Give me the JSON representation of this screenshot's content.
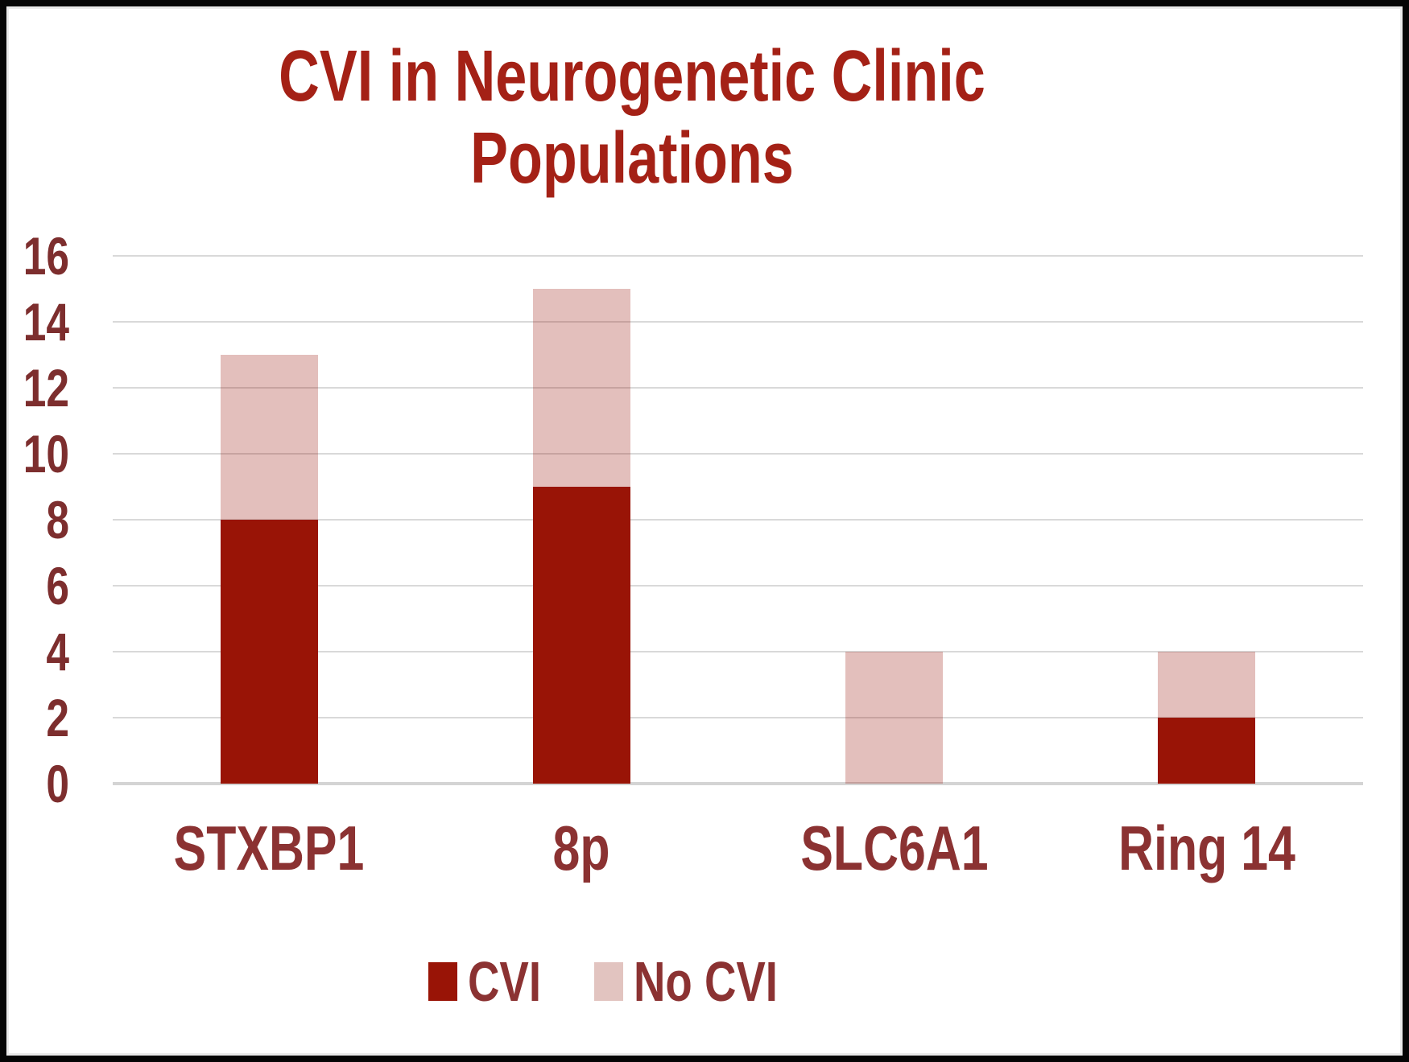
{
  "chart_data": {
    "type": "bar",
    "stacked": true,
    "title": "CVI in Neurogenetic Clinic Populations",
    "title_lines": [
      "CVI in Neurogenetic Clinic",
      "Populations"
    ],
    "categories": [
      "STXBP1",
      "8p",
      "SLC6A1",
      "Ring 14"
    ],
    "series": [
      {
        "name": "CVI",
        "values": [
          8,
          9,
          0,
          2
        ],
        "color": "#991406",
        "bar_fill": "#991406"
      },
      {
        "name": "No CVI",
        "values": [
          5,
          6,
          4,
          2
        ],
        "color": "#e2c4c0",
        "bar_fill": "rgba(153,20,6,0.27)"
      }
    ],
    "ylim": [
      0,
      16
    ],
    "yticks": [
      0,
      2,
      4,
      6,
      8,
      10,
      12,
      14,
      16
    ],
    "xlabel": "",
    "ylabel": "",
    "grid": true,
    "legend_position": "bottom"
  },
  "colors": {
    "title": "#a42116",
    "y_tick_label": "#7d2e2e",
    "x_tick_label": "#8b3232",
    "legend_label": "#8b3232",
    "gridline": "#d9d9d9",
    "series_cvi": "#991406",
    "series_no_cvi": "#e2c4c0",
    "frame": "#050505",
    "background": "#ffffff"
  }
}
